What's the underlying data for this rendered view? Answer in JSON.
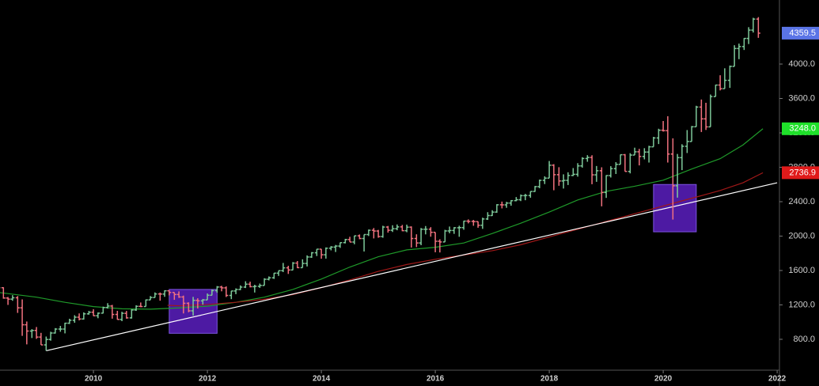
{
  "chart_data": {
    "type": "ohlc",
    "xlim": [
      2008.36,
      2022.04
    ],
    "ylim": [
      441,
      4745
    ],
    "xticks": [
      2010,
      2012,
      2014,
      2016,
      2018,
      2020,
      2022
    ],
    "yticks": [
      {
        "value": 800,
        "label": "800.0"
      },
      {
        "value": 1200,
        "label": "1200.0"
      },
      {
        "value": 1600,
        "label": "1600.0"
      },
      {
        "value": 2000,
        "label": "2000.0"
      },
      {
        "value": 2400,
        "label": "2400.0"
      },
      {
        "value": 2800,
        "label": "2800.0"
      },
      {
        "value": 3200,
        "label": "3200.0"
      },
      {
        "value": 3600,
        "label": "3600.0"
      },
      {
        "value": 4000,
        "label": "4000.0"
      }
    ],
    "ohlc": {
      "up_color": "#7ec99a",
      "down_color": "#f2727f",
      "last_label": "4359.5",
      "label_color": "#5a74e6",
      "x": [
        2008.33,
        2008.42,
        2008.5,
        2008.58,
        2008.67,
        2008.75,
        2008.83,
        2008.92,
        2009,
        2009.08,
        2009.17,
        2009.25,
        2009.33,
        2009.42,
        2009.5,
        2009.58,
        2009.67,
        2009.75,
        2009.83,
        2009.92,
        2010,
        2010.08,
        2010.17,
        2010.25,
        2010.33,
        2010.42,
        2010.5,
        2010.58,
        2010.67,
        2010.75,
        2010.83,
        2010.92,
        2011,
        2011.08,
        2011.17,
        2011.25,
        2011.33,
        2011.42,
        2011.5,
        2011.58,
        2011.67,
        2011.75,
        2011.83,
        2011.92,
        2012,
        2012.08,
        2012.17,
        2012.25,
        2012.33,
        2012.42,
        2012.5,
        2012.58,
        2012.67,
        2012.75,
        2012.83,
        2012.92,
        2013,
        2013.08,
        2013.17,
        2013.25,
        2013.33,
        2013.42,
        2013.5,
        2013.58,
        2013.67,
        2013.75,
        2013.83,
        2013.92,
        2014,
        2014.08,
        2014.17,
        2014.25,
        2014.33,
        2014.42,
        2014.5,
        2014.58,
        2014.67,
        2014.75,
        2014.83,
        2014.92,
        2015,
        2015.08,
        2015.17,
        2015.25,
        2015.33,
        2015.42,
        2015.5,
        2015.58,
        2015.67,
        2015.75,
        2015.83,
        2015.92,
        2016,
        2016.08,
        2016.17,
        2016.25,
        2016.33,
        2016.42,
        2016.5,
        2016.58,
        2016.67,
        2016.75,
        2016.83,
        2016.92,
        2017,
        2017.08,
        2017.17,
        2017.25,
        2017.33,
        2017.42,
        2017.5,
        2017.58,
        2017.67,
        2017.75,
        2017.83,
        2017.92,
        2018,
        2018.08,
        2018.17,
        2018.25,
        2018.33,
        2018.42,
        2018.5,
        2018.58,
        2018.67,
        2018.75,
        2018.83,
        2018.92,
        2019,
        2019.08,
        2019.17,
        2019.25,
        2019.33,
        2019.42,
        2019.5,
        2019.58,
        2019.67,
        2019.75,
        2019.83,
        2019.92,
        2020,
        2020.08,
        2020.17,
        2020.25,
        2020.33,
        2020.42,
        2020.5,
        2020.58,
        2020.67,
        2020.75,
        2020.83,
        2020.92,
        2021,
        2021.08,
        2021.17,
        2021.25,
        2021.33,
        2021.42,
        2021.5,
        2021.58,
        2021.67
      ],
      "open": [
        1385,
        1400,
        1280,
        1267,
        1283,
        1166,
        969,
        896,
        903,
        826,
        735,
        798,
        873,
        919,
        919,
        987,
        1021,
        1057,
        1036,
        1096,
        1115,
        1074,
        1104,
        1169,
        1187,
        1089,
        1031,
        1102,
        1049,
        1141,
        1183,
        1181,
        1258,
        1286,
        1327,
        1326,
        1364,
        1345,
        1321,
        1292,
        1219,
        1131,
        1253,
        1247,
        1258,
        1312,
        1366,
        1408,
        1398,
        1310,
        1362,
        1379,
        1407,
        1441,
        1412,
        1416,
        1426,
        1498,
        1515,
        1569,
        1598,
        1631,
        1606,
        1686,
        1633,
        1682,
        1757,
        1806,
        1848,
        1783,
        1859,
        1872,
        1884,
        1924,
        1960,
        1931,
        2003,
        1972,
        2018,
        2068,
        2059,
        1995,
        2105,
        2068,
        2086,
        2107,
        2063,
        2104,
        1972,
        1920,
        2079,
        2080,
        2044,
        1940,
        1932,
        2060,
        2065,
        2097,
        2099,
        2174,
        2171,
        2168,
        2126,
        2199,
        2239,
        2279,
        2364,
        2363,
        2384,
        2412,
        2423,
        2470,
        2472,
        2519,
        2575,
        2648,
        2674,
        2824,
        2714,
        2641,
        2648,
        2705,
        2718,
        2816,
        2902,
        2914,
        2712,
        2760,
        2507,
        2704,
        2784,
        2834,
        2946,
        2752,
        2942,
        2980,
        2926,
        2977,
        3038,
        3141,
        3231,
        3226,
        2954,
        2585,
        2912,
        3044,
        3100,
        3271,
        3500,
        3363,
        3270,
        3622,
        3756,
        3714,
        3811,
        3973,
        4181,
        4204,
        4298,
        4395,
        4523
      ],
      "high": [
        1440,
        1405,
        1292,
        1313,
        1303,
        1264,
        1007,
        918,
        943,
        875,
        832,
        888,
        930,
        956,
        993,
        1039,
        1080,
        1101,
        1113,
        1130,
        1150,
        1112,
        1180,
        1220,
        1200,
        1131,
        1120,
        1130,
        1150,
        1196,
        1228,
        1263,
        1303,
        1345,
        1344,
        1370,
        1371,
        1346,
        1357,
        1308,
        1230,
        1293,
        1277,
        1269,
        1333,
        1378,
        1419,
        1422,
        1415,
        1363,
        1392,
        1427,
        1475,
        1470,
        1434,
        1448,
        1510,
        1531,
        1571,
        1598,
        1688,
        1655,
        1698,
        1710,
        1730,
        1776,
        1814,
        1850,
        1850,
        1868,
        1884,
        1897,
        1925,
        1968,
        1992,
        2005,
        2019,
        2018,
        2076,
        2094,
        2072,
        2120,
        2118,
        2126,
        2135,
        2130,
        2133,
        2113,
        2021,
        2094,
        2117,
        2104,
        2044,
        1963,
        2073,
        2111,
        2104,
        2121,
        2178,
        2194,
        2188,
        2170,
        2214,
        2278,
        2301,
        2371,
        2401,
        2398,
        2418,
        2454,
        2484,
        2491,
        2519,
        2582,
        2657,
        2695,
        2873,
        2836,
        2801,
        2718,
        2742,
        2791,
        2848,
        2917,
        2941,
        2940,
        2815,
        2800,
        2708,
        2813,
        2860,
        2949,
        2954,
        2964,
        3028,
        3014,
        3022,
        3050,
        3154,
        3248,
        3338,
        3394,
        3137,
        2955,
        3068,
        3233,
        3280,
        3515,
        3588,
        3550,
        3646,
        3760,
        3870,
        3951,
        3983,
        4219,
        4238,
        4302,
        4429,
        4538,
        4546
      ],
      "low": [
        1373,
        1272,
        1200,
        1248,
        1107,
        840,
        741,
        815,
        805,
        735,
        667,
        784,
        867,
        888,
        869,
        978,
        992,
        1020,
        1029,
        1086,
        1071,
        1045,
        1101,
        1157,
        1040,
        1029,
        1011,
        1040,
        1041,
        1131,
        1173,
        1181,
        1257,
        1285,
        1249,
        1294,
        1311,
        1259,
        1282,
        1101,
        1115,
        1075,
        1158,
        1203,
        1258,
        1312,
        1341,
        1358,
        1292,
        1267,
        1325,
        1372,
        1396,
        1404,
        1344,
        1398,
        1426,
        1485,
        1502,
        1537,
        1582,
        1560,
        1604,
        1627,
        1633,
        1647,
        1747,
        1768,
        1737,
        1738,
        1834,
        1815,
        1863,
        1915,
        1931,
        1905,
        1964,
        1821,
        2001,
        1973,
        1981,
        1981,
        2040,
        2048,
        2068,
        2057,
        2045,
        1867,
        1872,
        1894,
        2020,
        1993,
        1812,
        1810,
        1932,
        2033,
        2026,
        1992,
        2074,
        2148,
        2120,
        2097,
        2084,
        2188,
        2234,
        2271,
        2322,
        2329,
        2353,
        2405,
        2407,
        2417,
        2446,
        2515,
        2557,
        2605,
        2674,
        2533,
        2585,
        2553,
        2594,
        2698,
        2691,
        2796,
        2864,
        2603,
        2631,
        2346,
        2444,
        2681,
        2722,
        2834,
        2751,
        2729,
        2942,
        2822,
        2892,
        2855,
        3038,
        3070,
        3215,
        2855,
        2192,
        2447,
        2767,
        2966,
        3100,
        3271,
        3210,
        3234,
        3270,
        3622,
        3694,
        3714,
        3723,
        3973,
        4057,
        4164,
        4233,
        4367,
        4305
      ],
      "close": [
        1400,
        1280,
        1267,
        1283,
        1166,
        969,
        896,
        903,
        826,
        735,
        798,
        873,
        919,
        919,
        987,
        1021,
        1057,
        1036,
        1096,
        1115,
        1074,
        1104,
        1169,
        1187,
        1089,
        1031,
        1102,
        1049,
        1141,
        1183,
        1181,
        1258,
        1286,
        1327,
        1326,
        1364,
        1345,
        1321,
        1292,
        1219,
        1131,
        1253,
        1247,
        1258,
        1312,
        1366,
        1408,
        1398,
        1310,
        1362,
        1379,
        1407,
        1441,
        1412,
        1416,
        1426,
        1498,
        1515,
        1569,
        1598,
        1631,
        1606,
        1686,
        1633,
        1682,
        1757,
        1806,
        1848,
        1783,
        1859,
        1872,
        1884,
        1924,
        1960,
        1931,
        2003,
        1972,
        2018,
        2068,
        2059,
        1995,
        2105,
        2068,
        2086,
        2107,
        2063,
        2104,
        1972,
        1920,
        2079,
        2080,
        2044,
        1940,
        1932,
        2060,
        2065,
        2097,
        2099,
        2174,
        2171,
        2168,
        2126,
        2199,
        2239,
        2279,
        2364,
        2363,
        2384,
        2412,
        2423,
        2470,
        2472,
        2519,
        2575,
        2648,
        2674,
        2824,
        2714,
        2641,
        2648,
        2705,
        2718,
        2816,
        2902,
        2914,
        2712,
        2760,
        2507,
        2704,
        2784,
        2834,
        2946,
        2752,
        2942,
        2980,
        2926,
        2977,
        3038,
        3141,
        3231,
        3226,
        2954,
        2585,
        2912,
        3044,
        3100,
        3271,
        3500,
        3363,
        3270,
        3622,
        3756,
        3714,
        3811,
        3973,
        4181,
        4204,
        4298,
        4395,
        4523,
        4359.5
      ]
    },
    "lines": [
      {
        "color": "#1f9a2a",
        "end_label": "3248.0",
        "label_color": "#1fe02a",
        "x": [
          2008.36,
          2009,
          2009.5,
          2010,
          2010.5,
          2011,
          2011.5,
          2012,
          2012.5,
          2013,
          2013.5,
          2014,
          2014.5,
          2015,
          2015.5,
          2016,
          2016.5,
          2017,
          2017.5,
          2018,
          2018.5,
          2019,
          2019.5,
          2020,
          2020.5,
          2021,
          2021.4,
          2021.75
        ],
        "values": [
          1343,
          1290,
          1230,
          1180,
          1155,
          1150,
          1165,
          1185,
          1230,
          1290,
          1380,
          1500,
          1640,
          1760,
          1840,
          1870,
          1920,
          2030,
          2150,
          2280,
          2420,
          2520,
          2580,
          2650,
          2780,
          2900,
          3060,
          3248
        ]
      },
      {
        "color": "#a01818",
        "end_label": "2736.9",
        "label_color": "#e01a1a",
        "x": [
          2011.3,
          2011.5,
          2012,
          2012.5,
          2013,
          2013.5,
          2014,
          2014.5,
          2015,
          2015.5,
          2016,
          2016.5,
          2017,
          2017.5,
          2018,
          2018.5,
          2019,
          2019.5,
          2020,
          2020.5,
          2021,
          2021.4,
          2021.75
        ],
        "values": [
          1195,
          1190,
          1205,
          1230,
          1265,
          1320,
          1400,
          1490,
          1590,
          1670,
          1730,
          1780,
          1830,
          1900,
          1990,
          2080,
          2170,
          2260,
          2350,
          2440,
          2530,
          2620,
          2736.9
        ]
      },
      {
        "color": "#ffffff",
        "x": [
          2009.17,
          2022
        ],
        "values": [
          667,
          2620
        ]
      }
    ],
    "boxes": [
      {
        "x": [
          2011.33,
          2012.17
        ],
        "y": [
          870,
          1380
        ],
        "color": "#5a1fc0"
      },
      {
        "x": [
          2019.83,
          2020.58
        ],
        "y": [
          2050,
          2600
        ],
        "color": "#5a1fc0"
      }
    ]
  }
}
